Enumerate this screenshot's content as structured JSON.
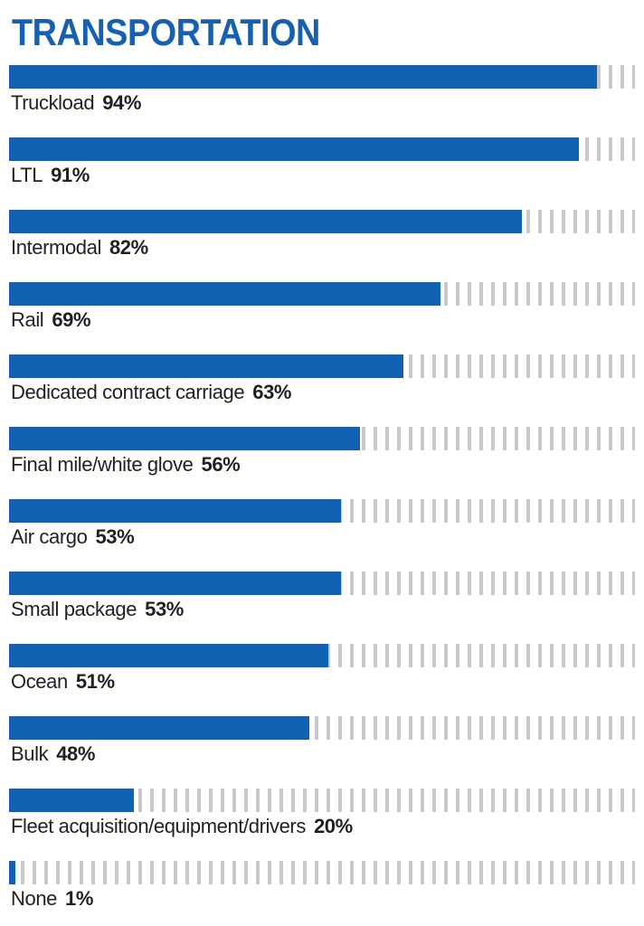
{
  "title": "TRANSPORTATION",
  "colors": {
    "title_blue": "#1660b2",
    "bar_blue": "#1262b3",
    "tick_gray": "#c7c9cb",
    "text_black": "#221f1f"
  },
  "chart_data": {
    "type": "bar",
    "orientation": "horizontal",
    "title": "TRANSPORTATION",
    "xlim": [
      0,
      100
    ],
    "value_suffix": "%",
    "categories": [
      "Truckload",
      "LTL",
      "Intermodal",
      "Rail",
      "Dedicated contract carriage",
      "Final mile/white glove",
      "Air cargo",
      "Small package",
      "Ocean",
      "Bulk",
      "Fleet acquisition/equipment/drivers",
      "None"
    ],
    "values": [
      94,
      91,
      82,
      69,
      63,
      56,
      53,
      53,
      51,
      48,
      20,
      1
    ],
    "legend": null,
    "grid": false
  }
}
